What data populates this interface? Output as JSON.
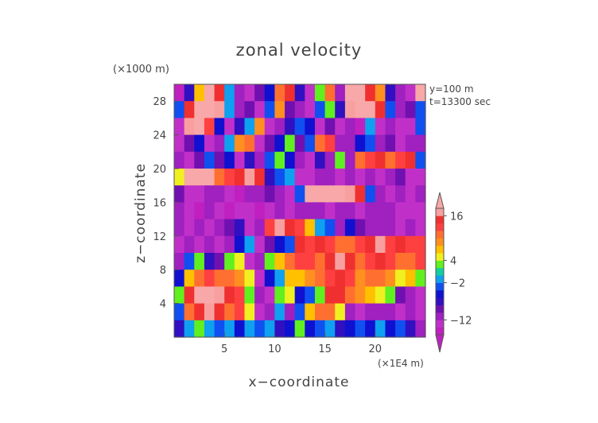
{
  "chart_data": {
    "type": "heatmap",
    "title": "zonal velocity",
    "xlabel": "x−coordinate",
    "ylabel": "z−coordinate",
    "x_unit": "(×1E4 m)",
    "y_unit": "(×1000 m)",
    "annotations": [
      "y=100 m",
      "t=13300 sec"
    ],
    "xlim": [
      0,
      25
    ],
    "ylim": [
      0,
      30
    ],
    "x_ticks": [
      5,
      10,
      15,
      20
    ],
    "y_ticks": [
      4,
      8,
      12,
      16,
      20,
      24,
      28
    ],
    "grid_cols": 25,
    "grid_rows": 15,
    "z_rows_top_to_bottom": [
      [
        -16,
        -8,
        6,
        18,
        14,
        -2,
        -12,
        -14,
        -10,
        -6,
        10,
        14,
        -8,
        -14,
        2,
        10,
        -12,
        18,
        20,
        14,
        8,
        -8,
        -12,
        -14,
        18
      ],
      [
        -4,
        14,
        18,
        20,
        16,
        -2,
        -12,
        -10,
        -14,
        -4,
        8,
        -10,
        -12,
        -14,
        -4,
        2,
        -8,
        16,
        20,
        18,
        14,
        -4,
        -12,
        -10,
        -4
      ],
      [
        -14,
        16,
        20,
        12,
        -6,
        -14,
        -8,
        -2,
        8,
        -14,
        -12,
        -8,
        -4,
        -6,
        -14,
        -10,
        -14,
        -12,
        -16,
        -2,
        -14,
        -12,
        -14,
        -14,
        -4
      ],
      [
        -14,
        -10,
        -6,
        -14,
        -12,
        -2,
        8,
        10,
        -14,
        -10,
        -6,
        2,
        -10,
        -4,
        10,
        12,
        -12,
        -12,
        -6,
        -4,
        -12,
        -10,
        -14,
        -12,
        -12
      ],
      [
        -12,
        -14,
        -10,
        -4,
        -10,
        -6,
        -14,
        -8,
        -12,
        -4,
        2,
        -6,
        -12,
        -14,
        -8,
        -12,
        2,
        -12,
        10,
        12,
        14,
        10,
        12,
        14,
        -4
      ],
      [
        4,
        18,
        20,
        18,
        10,
        12,
        14,
        16,
        14,
        -8,
        -4,
        -2,
        -14,
        -14,
        -12,
        -12,
        -14,
        -12,
        -14,
        -12,
        -14,
        -12,
        -10,
        -14,
        -14
      ],
      [
        -10,
        -14,
        -14,
        -12,
        -12,
        -14,
        -16,
        -12,
        -12,
        -10,
        -12,
        -14,
        -4,
        18,
        20,
        20,
        18,
        16,
        14,
        -4,
        -12,
        -14,
        -12,
        -14,
        -12
      ],
      [
        -12,
        -14,
        -16,
        -12,
        -14,
        -16,
        -14,
        -14,
        -16,
        -14,
        -12,
        -14,
        -12,
        -12,
        -12,
        -14,
        -12,
        -12,
        -14,
        -12,
        -12,
        -12,
        -14,
        -14,
        -14
      ],
      [
        -12,
        -14,
        -12,
        -14,
        -12,
        -10,
        -8,
        -14,
        -12,
        12,
        16,
        14,
        12,
        6,
        -2,
        -4,
        -12,
        -6,
        -10,
        -12,
        -12,
        -12,
        -14,
        -12,
        -14
      ],
      [
        -14,
        -12,
        -14,
        -12,
        -14,
        -12,
        -6,
        -2,
        -14,
        -10,
        -6,
        -4,
        14,
        12,
        14,
        12,
        10,
        10,
        12,
        14,
        16,
        12,
        14,
        12,
        12
      ],
      [
        -12,
        -4,
        2,
        -8,
        -10,
        2,
        4,
        -14,
        -12,
        2,
        6,
        10,
        12,
        12,
        10,
        14,
        16,
        14,
        10,
        12,
        14,
        12,
        10,
        10,
        12
      ],
      [
        -6,
        6,
        10,
        12,
        10,
        10,
        8,
        4,
        -14,
        -6,
        -2,
        6,
        6,
        8,
        10,
        12,
        14,
        12,
        8,
        10,
        10,
        8,
        4,
        6,
        2
      ],
      [
        2,
        14,
        18,
        18,
        16,
        14,
        12,
        2,
        -12,
        -14,
        2,
        4,
        -6,
        -4,
        2,
        14,
        14,
        10,
        8,
        6,
        4,
        2,
        -10,
        -12,
        -14
      ],
      [
        -4,
        10,
        14,
        16,
        14,
        10,
        12,
        4,
        -14,
        -12,
        -2,
        -12,
        -4,
        6,
        10,
        10,
        4,
        -12,
        -14,
        -12,
        -12,
        -12,
        -14,
        -12,
        -14
      ],
      [
        -8,
        -2,
        2,
        -2,
        -4,
        -2,
        -6,
        -2,
        -4,
        -2,
        -8,
        -6,
        2,
        -6,
        -4,
        -2,
        -8,
        -6,
        -4,
        -6,
        -2,
        -6,
        -4,
        -8,
        -12
      ]
    ],
    "colorbar": {
      "levels": [
        -16,
        -14,
        -12,
        -10,
        -8,
        -6,
        -4,
        -2,
        0,
        2,
        4,
        6,
        8,
        10,
        12,
        14,
        16,
        18
      ],
      "colors": [
        "#c020c0",
        "#c030c8",
        "#a020c0",
        "#7010b0",
        "#3010c0",
        "#1010d0",
        "#1050f0",
        "#10a0f0",
        "#10d0a0",
        "#60f020",
        "#f0f020",
        "#ffc000",
        "#ff9020",
        "#ff7030",
        "#ff4040",
        "#f03030",
        "#f8a0a0"
      ],
      "over_color": "#f8a8a8",
      "under_color": "#c020c0",
      "tick_labels": [
        "16",
        "4",
        "−2",
        "−12"
      ],
      "tick_values": [
        16,
        4,
        -2,
        -12
      ]
    }
  }
}
